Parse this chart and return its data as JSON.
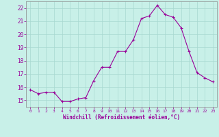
{
  "hours": [
    0,
    1,
    2,
    3,
    4,
    5,
    6,
    7,
    8,
    9,
    10,
    11,
    12,
    13,
    14,
    15,
    16,
    17,
    18,
    19,
    20,
    21,
    22,
    23
  ],
  "values": [
    15.8,
    15.5,
    15.6,
    15.6,
    14.9,
    14.9,
    15.1,
    15.2,
    16.5,
    17.5,
    17.5,
    18.7,
    18.7,
    19.6,
    21.2,
    21.4,
    22.2,
    21.5,
    21.3,
    20.5,
    18.7,
    17.1,
    16.7,
    16.4
  ],
  "line_color": "#990099",
  "marker": "+",
  "bg_color": "#c8f0e8",
  "grid_color": "#a8d8d0",
  "xlabel": "Windchill (Refroidissement éolien,°C)",
  "xlabel_color": "#990099",
  "tick_color": "#990099",
  "axis_color": "#888888",
  "ylim": [
    14.5,
    22.5
  ],
  "xlim": [
    -0.5,
    23.5
  ],
  "yticks": [
    15,
    16,
    17,
    18,
    19,
    20,
    21,
    22
  ],
  "xticks": [
    0,
    1,
    2,
    3,
    4,
    5,
    6,
    7,
    8,
    9,
    10,
    11,
    12,
    13,
    14,
    15,
    16,
    17,
    18,
    19,
    20,
    21,
    22,
    23
  ]
}
